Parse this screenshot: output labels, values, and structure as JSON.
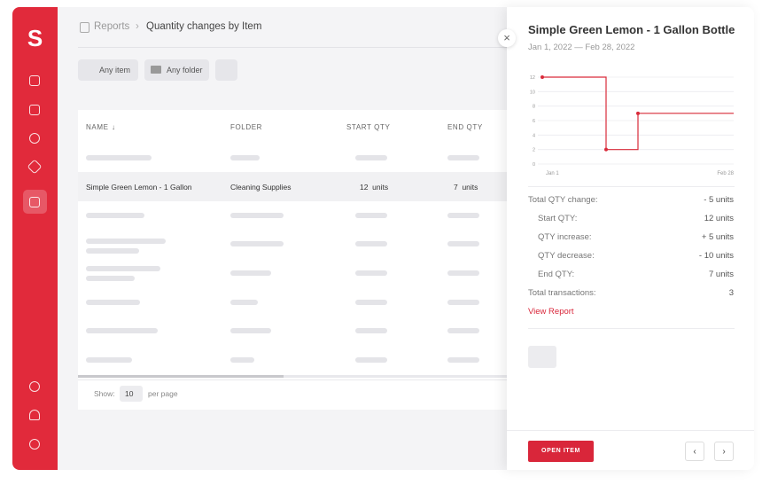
{
  "sidebar": {
    "logo": "S"
  },
  "breadcrumb": {
    "parent": "Reports",
    "current": "Quantity changes by Item"
  },
  "filters": [
    "Any item",
    "Any folder"
  ],
  "table": {
    "headers": [
      "NAME",
      "FOLDER",
      "START QTY",
      "END QTY"
    ],
    "rows": [
      [
        "Simple Green Lemon - 1 Gallon",
        "Cleaning Supplies",
        "12  units",
        "7  units"
      ]
    ]
  },
  "pagination": {
    "show_label": "Show:",
    "per_page": "10",
    "per_page_label": "per page"
  },
  "panel": {
    "title": "Simple Green Lemon - 1 Gallon Bottle",
    "date_range": "Jan 1, 2022 — Feb 28, 2022",
    "summary": [
      {
        "label": "Total QTY change:",
        "value": "- 5 units"
      },
      {
        "label": "Start QTY:",
        "value": "12 units"
      },
      {
        "label": "QTY increase:",
        "value": "+ 5 units"
      },
      {
        "label": "QTY decrease:",
        "value": "- 10 units"
      },
      {
        "label": "End QTY:",
        "value": "7 units"
      },
      {
        "label": "Total transactions:",
        "value": "3"
      }
    ],
    "link": "View Report",
    "button": "OPEN ITEM"
  },
  "chart_data": {
    "type": "line",
    "step": "post",
    "color": "#d92b3a",
    "categories": [
      "Jan 1",
      null,
      null,
      null,
      null,
      null,
      "Feb 28"
    ],
    "values": [
      12,
      12,
      2,
      7,
      7,
      7,
      7
    ],
    "ylim": [
      0,
      12
    ],
    "yticks": [
      0,
      2,
      4,
      6,
      8,
      10,
      12
    ],
    "grid": true
  }
}
